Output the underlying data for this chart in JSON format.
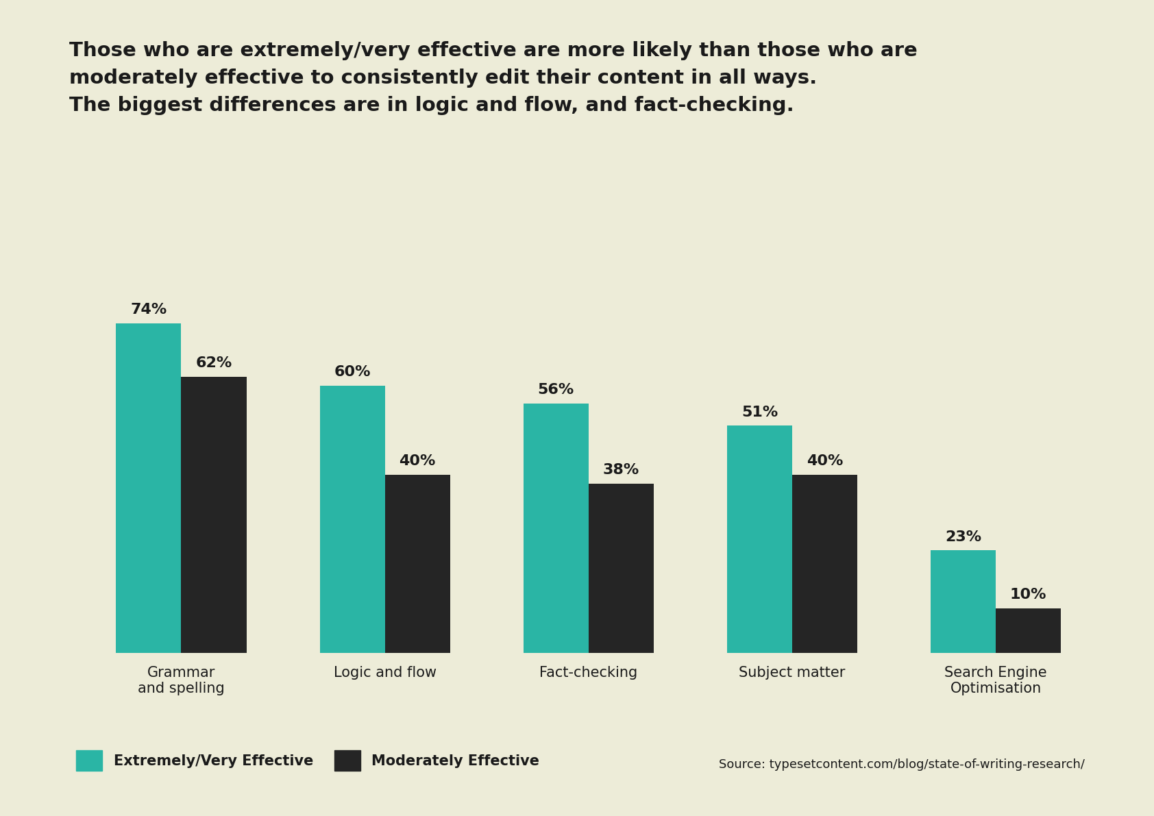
{
  "title_line1": "Those who are extremely/very effective are more likely than those who are",
  "title_line2": "moderately effective to consistently edit their content in all ways.",
  "title_line3": "The biggest differences are in logic and flow, and fact-checking.",
  "categories": [
    "Grammar\nand spelling",
    "Logic and flow",
    "Fact-checking",
    "Subject matter",
    "Search Engine\nOptimisation"
  ],
  "extremely_values": [
    74,
    60,
    56,
    51,
    23
  ],
  "moderately_values": [
    62,
    40,
    38,
    40,
    10
  ],
  "bar_color_extreme": "#2ab5a5",
  "bar_color_moderate": "#252525",
  "background_color": "#edecd8",
  "text_color": "#1a1a1a",
  "legend_label_extreme": "Extremely/Very Effective",
  "legend_label_moderate": "Moderately Effective",
  "source_text": "Source: typesetcontent.com/blog/state-of-writing-research/",
  "bar_width": 0.32,
  "ylim": [
    0,
    88
  ]
}
